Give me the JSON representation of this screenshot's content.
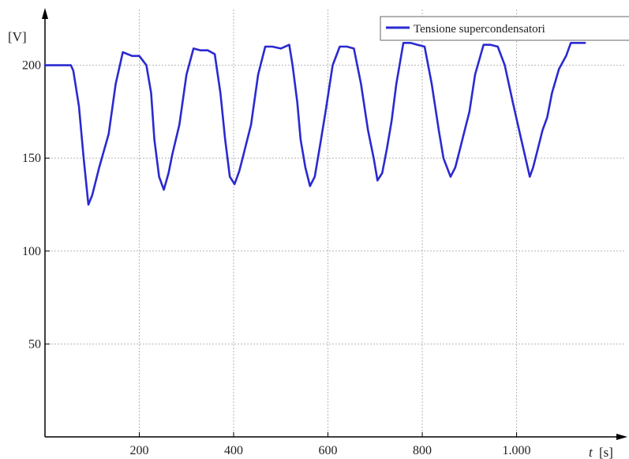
{
  "chart_data": {
    "type": "line",
    "title": "",
    "xlabel": {
      "var": "t",
      "unit": "[s]"
    },
    "ylabel": "[V]",
    "xlim": [
      0,
      1230
    ],
    "ylim": [
      0,
      230
    ],
    "x_ticks": [
      200,
      400,
      600,
      800,
      1000
    ],
    "x_tick_labels": [
      "200",
      "400",
      "600",
      "800",
      "1.000"
    ],
    "y_ticks": [
      50,
      100,
      150,
      200
    ],
    "y_tick_labels": [
      "50",
      "100",
      "150",
      "200"
    ],
    "grid": true,
    "legend": {
      "position": "top-right",
      "entries": [
        "Tensione supercondensatori"
      ]
    },
    "series": [
      {
        "name": "Tensione supercondensatori",
        "color": "#2a2ad0",
        "x": [
          0,
          55,
          60,
          72,
          82,
          92,
          100,
          115,
          135,
          150,
          165,
          175,
          185,
          200,
          215,
          225,
          232,
          242,
          252,
          262,
          270,
          285,
          300,
          315,
          330,
          345,
          360,
          372,
          382,
          392,
          402,
          412,
          422,
          437,
          452,
          467,
          482,
          500,
          518,
          525,
          535,
          542,
          552,
          562,
          572,
          582,
          595,
          610,
          625,
          640,
          655,
          670,
          685,
          697,
          705,
          715,
          725,
          735,
          745,
          760,
          775,
          790,
          805,
          820,
          835,
          845,
          860,
          870,
          880,
          890,
          900,
          912,
          930,
          945,
          960,
          975,
          992,
          1010,
          1028,
          1035,
          1045,
          1055,
          1065,
          1075,
          1090,
          1105,
          1115,
          1130,
          1145
        ],
        "y": [
          200,
          200,
          197,
          178,
          150,
          125,
          130,
          145,
          163,
          190,
          207,
          206,
          205,
          205,
          200,
          185,
          160,
          140,
          133,
          142,
          152,
          168,
          195,
          209,
          208,
          208,
          206,
          185,
          160,
          140,
          136,
          143,
          153,
          168,
          195,
          210,
          210,
          209,
          211,
          200,
          180,
          160,
          145,
          135,
          140,
          155,
          175,
          200,
          210,
          210,
          209,
          190,
          165,
          150,
          138,
          142,
          155,
          170,
          190,
          212,
          212,
          211,
          210,
          190,
          165,
          150,
          140,
          145,
          155,
          165,
          175,
          195,
          211,
          211,
          210,
          200,
          180,
          160,
          140,
          145,
          155,
          165,
          172,
          185,
          198,
          205,
          212,
          212,
          212
        ]
      }
    ]
  }
}
